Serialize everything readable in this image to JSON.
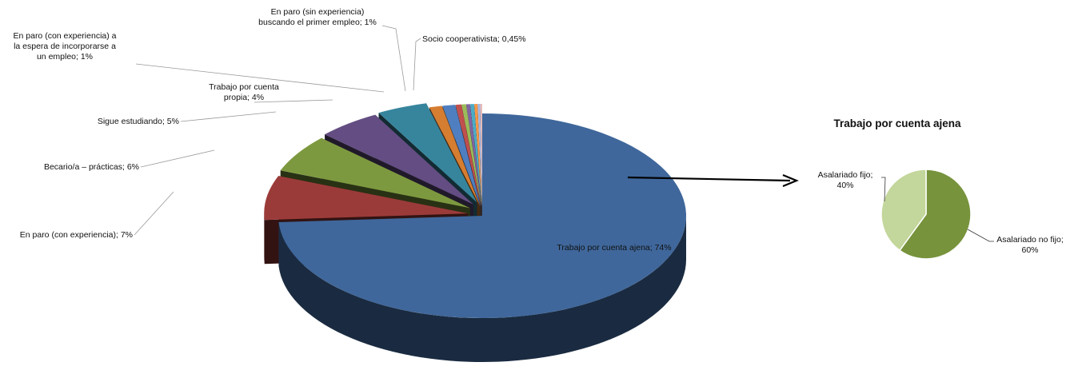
{
  "chart_data": [
    {
      "type": "pie",
      "style": "3d-exploded",
      "slices": [
        {
          "label": "Trabajo por cuenta ajena; 74%",
          "value": 74,
          "color": "#3f679b"
        },
        {
          "label": "En paro (con experiencia); 7%",
          "value": 7,
          "color": "#9b3b39"
        },
        {
          "label": "Becario/a – prácticas; 6%",
          "value": 6,
          "color": "#7d993f"
        },
        {
          "label": "Sigue estudiando; 5%",
          "value": 5,
          "color": "#634d82"
        },
        {
          "label": "Trabajo por cuenta propia; 4%",
          "value": 4,
          "color": "#37859d"
        },
        {
          "label": "En paro (con experiencia) a la espera de incorporarse a un empleo; 1%",
          "value": 1,
          "color": "#d57d31"
        },
        {
          "label": "En paro (sin experiencia) buscando el primer empleo; 1%",
          "value": 1,
          "color": "#4f7fc0"
        },
        {
          "label": "Socio cooperativista; 0,45%",
          "value": 0.45,
          "color": "#c0504d"
        },
        {
          "label": "",
          "value": 0.35,
          "color": "#9bbb59"
        },
        {
          "label": "",
          "value": 0.3,
          "color": "#8064a2"
        },
        {
          "label": "",
          "value": 0.3,
          "color": "#4bacc6"
        },
        {
          "label": "",
          "value": 0.25,
          "color": "#f79646"
        },
        {
          "label": "",
          "value": 0.2,
          "color": "#a7b9e0"
        },
        {
          "label": "",
          "value": 0.15,
          "color": "#e6b9b8"
        }
      ]
    },
    {
      "type": "pie",
      "title": "Trabajo por cuenta ajena",
      "slices": [
        {
          "label": "Asalariado no fijo; 60%",
          "value": 60,
          "color": "#77933c"
        },
        {
          "label": "Asalariado fijo; 40%",
          "value": 40,
          "color": "#c3d69b"
        }
      ]
    }
  ]
}
